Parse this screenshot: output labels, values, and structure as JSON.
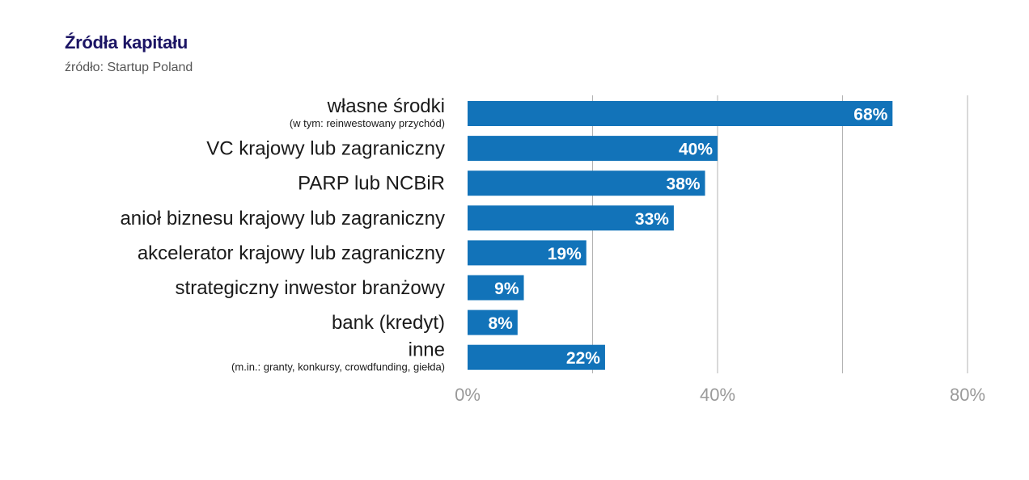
{
  "chart_data": {
    "type": "bar",
    "orientation": "horizontal",
    "title": "Źródła kapitału",
    "subtitle": "źródło: Startup Poland",
    "categories": [
      {
        "label": "własne środki",
        "note": "(w tym: reinwestowany przychód)"
      },
      {
        "label": "VC krajowy lub zagraniczny",
        "note": ""
      },
      {
        "label": "PARP lub NCBiR",
        "note": ""
      },
      {
        "label": "anioł biznesu krajowy lub zagraniczny",
        "note": ""
      },
      {
        "label": "akcelerator krajowy lub zagraniczny",
        "note": ""
      },
      {
        "label": "strategiczny inwestor branżowy",
        "note": ""
      },
      {
        "label": "bank (kredyt)",
        "note": ""
      },
      {
        "label": "inne",
        "note": "(m.in.: granty, konkursy, crowdfunding, giełda)"
      }
    ],
    "values": [
      68,
      40,
      38,
      33,
      19,
      9,
      8,
      22
    ],
    "value_labels": [
      "68%",
      "40%",
      "38%",
      "33%",
      "19%",
      "9%",
      "8%",
      "22%"
    ],
    "xlim": [
      0,
      80
    ],
    "x_ticks": [
      {
        "value": 0,
        "label": "0%"
      },
      {
        "value": 40,
        "label": "40%"
      },
      {
        "value": 80,
        "label": "80%"
      }
    ],
    "gridlines": [
      20,
      40,
      60,
      80
    ],
    "grid": true,
    "bar_color": "#1273b9",
    "grid_color": "#b3b3b3"
  }
}
